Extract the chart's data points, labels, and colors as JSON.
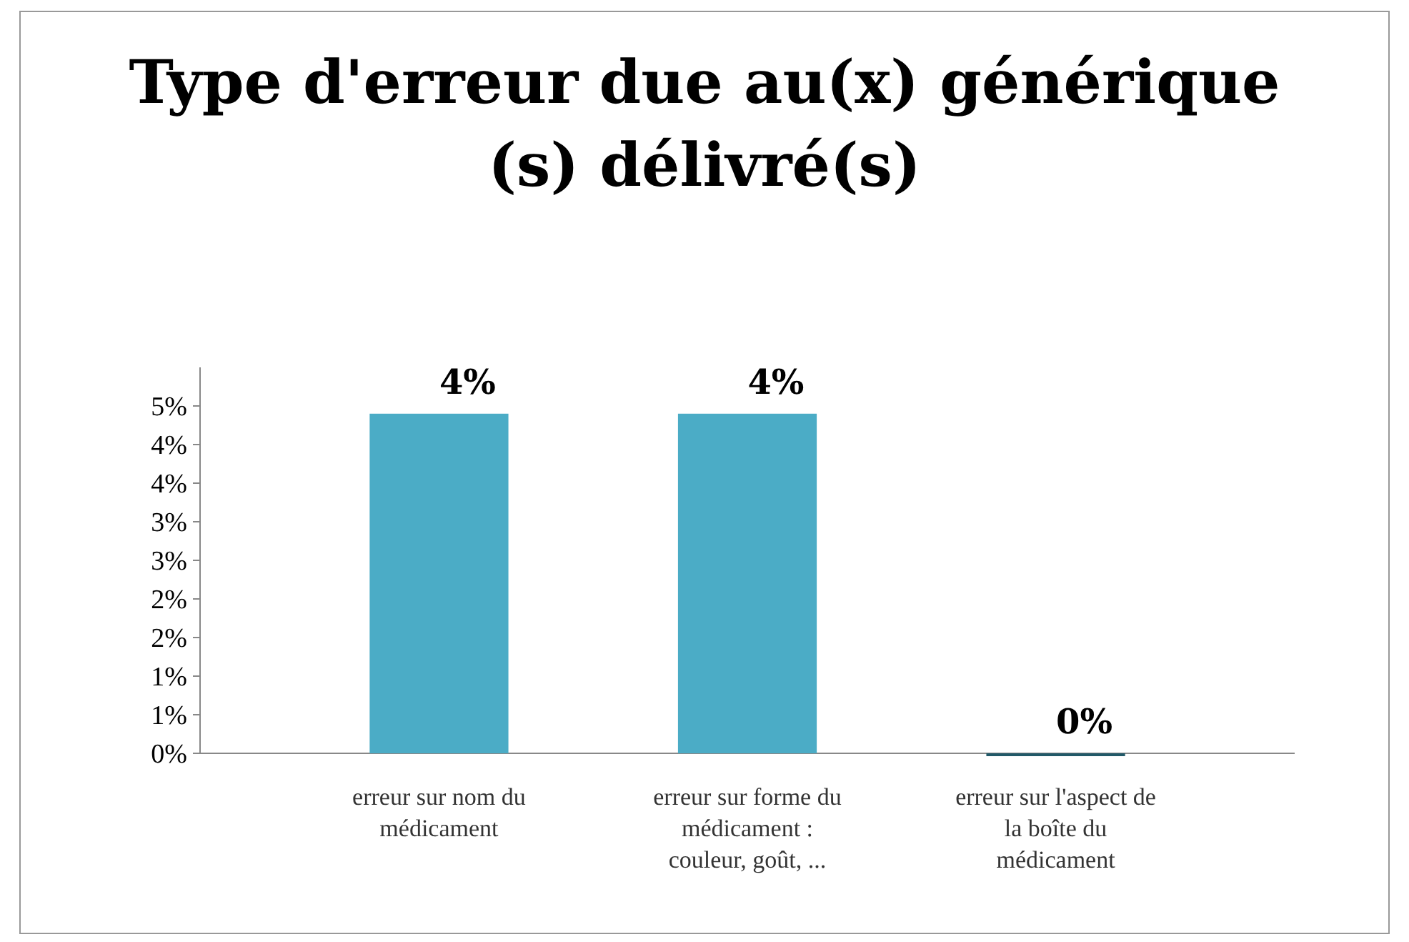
{
  "chart_data": {
    "type": "bar",
    "title": "Type d'erreur due au(x) générique (s) délivré(s)",
    "categories": [
      "erreur sur nom du médicament",
      "erreur sur forme du médicament : couleur, goût, ...",
      "erreur sur l'aspect de la boîte du médicament"
    ],
    "values": [
      4.4,
      4.4,
      0
    ],
    "colors": [
      "#4bacc6",
      "#4bacc6",
      "#215968"
    ],
    "value_labels": [
      "4%",
      "4%",
      "0%"
    ],
    "ylim": [
      0,
      5
    ],
    "yticks": [
      {
        "value": 0,
        "label": "0%"
      },
      {
        "value": 0.5,
        "label": "1%"
      },
      {
        "value": 1,
        "label": "1%"
      },
      {
        "value": 1.5,
        "label": "2%"
      },
      {
        "value": 2,
        "label": "2%"
      },
      {
        "value": 2.5,
        "label": "3%"
      },
      {
        "value": 3,
        "label": "3%"
      },
      {
        "value": 3.5,
        "label": "4%"
      },
      {
        "value": 4,
        "label": "4%"
      },
      {
        "value": 4.5,
        "label": "5%"
      }
    ],
    "grid": false
  }
}
